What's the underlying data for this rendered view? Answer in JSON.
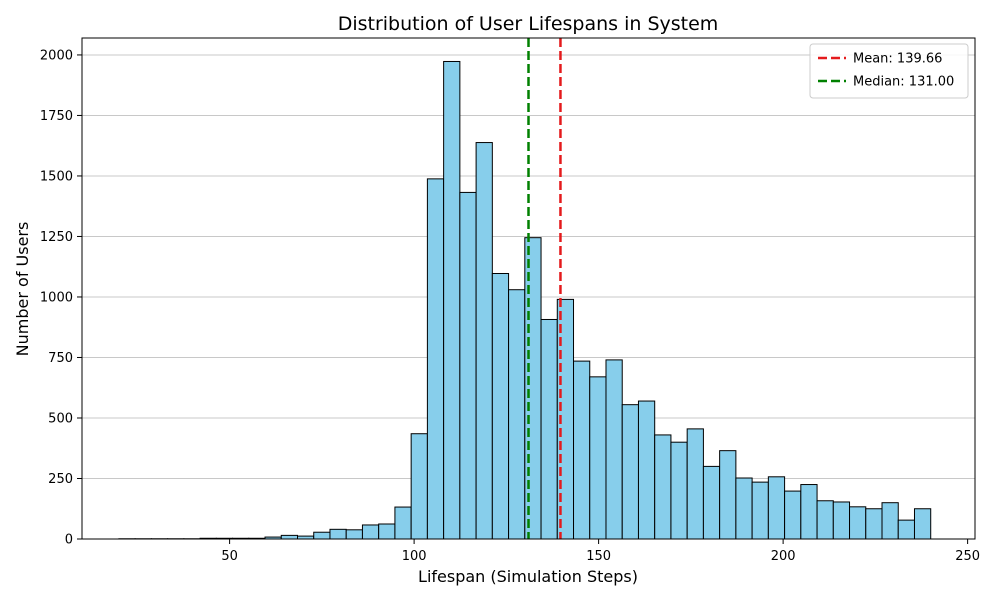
{
  "chart_data": {
    "type": "bar",
    "title": "Distribution of User Lifespans in System",
    "xlabel": "Lifespan (Simulation Steps)",
    "ylabel": "Number of Users",
    "xlim": [
      10,
      252
    ],
    "ylim": [
      0,
      2070
    ],
    "xticks": [
      50,
      100,
      150,
      200,
      250
    ],
    "yticks": [
      0,
      250,
      500,
      750,
      1000,
      1250,
      1500,
      1750,
      2000
    ],
    "grid": "y",
    "bar_color": "#87ceeb",
    "bar_edge_color": "#000000",
    "bin_edges": [
      20.0,
      24.4,
      28.8,
      33.2,
      37.6,
      42.0,
      46.4,
      50.8,
      55.2,
      59.6,
      64.0,
      68.4,
      72.8,
      77.2,
      81.6,
      86.0,
      90.4,
      94.8,
      99.2,
      103.6,
      108.0,
      112.4,
      116.8,
      121.2,
      125.6,
      130.0,
      134.4,
      138.8,
      143.2,
      147.6,
      152.0,
      156.4,
      160.8,
      165.2,
      169.6,
      174.0,
      178.4,
      182.8,
      187.2,
      191.6,
      196.0,
      200.4,
      204.8,
      209.2,
      213.6,
      218.0,
      222.4,
      226.8,
      231.2,
      235.6,
      240.0
    ],
    "counts": [
      1,
      1,
      1,
      1,
      1,
      3,
      3,
      3,
      3,
      8,
      15,
      12,
      28,
      40,
      38,
      58,
      62,
      132,
      435,
      1488,
      1973,
      1432,
      1638,
      1097,
      1030,
      1245,
      907,
      990,
      735,
      670,
      740,
      555,
      570,
      430,
      400,
      455,
      300,
      365,
      252,
      235,
      257,
      198,
      225,
      158,
      153,
      133,
      125,
      150,
      78,
      125
    ],
    "reference_lines": [
      {
        "name": "Mean: 139.66",
        "x": 139.66,
        "color": "#e41a1c",
        "style": "dashed"
      },
      {
        "name": "Median: 131.00",
        "x": 131.0,
        "color": "#008000",
        "style": "dashed"
      }
    ],
    "legend": "top-right"
  }
}
